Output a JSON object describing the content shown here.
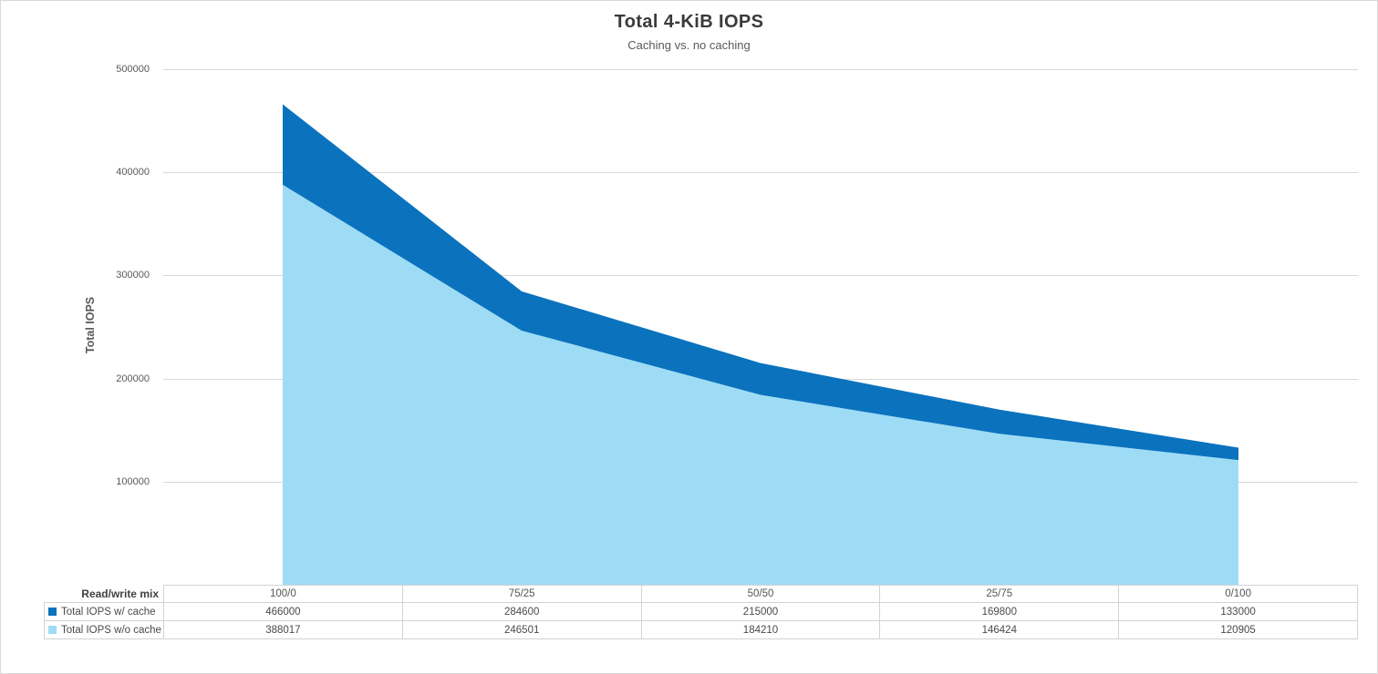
{
  "chart": {
    "title": "Total 4-KiB IOPS",
    "subtitle": "Caching vs. no caching",
    "y_axis_title": "Total IOPS"
  },
  "chart_data": {
    "type": "area",
    "title": "Total 4-KiB IOPS",
    "subtitle": "Caching vs. no caching",
    "xlabel": "Read/write mix",
    "ylabel": "Total IOPS",
    "categories": [
      "100/0",
      "75/25",
      "50/50",
      "25/75",
      "0/100"
    ],
    "series": [
      {
        "name": "Total IOPS w/ cache",
        "values": [
          466000,
          284600,
          215000,
          169800,
          133000
        ],
        "color": "#0b72be"
      },
      {
        "name": "Total IOPS w/o cache",
        "values": [
          388017,
          246501,
          184210,
          146424,
          120905
        ],
        "color": "#9edcf5"
      }
    ],
    "ylim": [
      0,
      500000
    ],
    "yticks": [
      500000,
      400000,
      300000,
      200000,
      100000
    ],
    "grid": true,
    "legend_position": "data-table-below-chart"
  },
  "table": {
    "corner_label": "Read/write mix"
  },
  "colors": {
    "series_cache": "#0b72be",
    "series_no_cache": "#9edcf5",
    "gridline": "#d9d9d9",
    "table_border": "#d3d3d3",
    "frame_border": "#d9d9d9",
    "title_text": "#3a3a3a",
    "muted_text": "#595959"
  }
}
